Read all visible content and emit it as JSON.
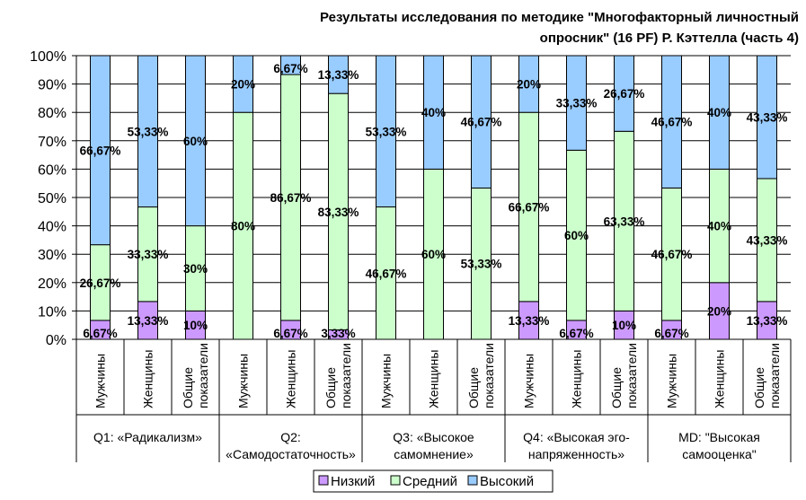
{
  "chart_data": {
    "type": "bar",
    "stacked": "percent",
    "title": "Результаты исследования по методике \"Многофакторный личностный опросник\" (16 PF) Р. Кэттелла (часть 4)",
    "title_lines": [
      "Результаты исследования по методике \"Многофакторный личностный",
      "опросник\" (16 PF) Р. Кэттелла (часть 4)"
    ],
    "ylim": [
      0,
      100
    ],
    "yticks": [
      "0%",
      "10%",
      "20%",
      "30%",
      "40%",
      "50%",
      "60%",
      "70%",
      "80%",
      "90%",
      "100%"
    ],
    "grid": true,
    "legend_position": "bottom",
    "groups": [
      {
        "label_lines": [
          "Q1: «Радикализм»"
        ]
      },
      {
        "label_lines": [
          "Q2:",
          "«Самодостаточность»"
        ]
      },
      {
        "label_lines": [
          "Q3: «Высокое",
          "самомнение»"
        ]
      },
      {
        "label_lines": [
          "Q4: «Высокая эго-",
          "напряженность»"
        ]
      },
      {
        "label_lines": [
          "MD: \"Высокая",
          "самооценка\""
        ]
      }
    ],
    "subcategories": [
      [
        "Мужчины"
      ],
      [
        "Женщины"
      ],
      [
        "Общие",
        "показатели"
      ]
    ],
    "series": [
      {
        "name": "Низкий",
        "color": "#CC99FF",
        "values": [
          6.67,
          13.33,
          10,
          0,
          6.67,
          3.33,
          0,
          0,
          0,
          13.33,
          6.67,
          10,
          6.67,
          20,
          13.33
        ],
        "labels": [
          "6,67%",
          "13,33%",
          "10%",
          "",
          "6,67%",
          "3,33%",
          "",
          "",
          "",
          "13,33%",
          "6,67%",
          "10%",
          "6,67%",
          "20%",
          "13,33%"
        ]
      },
      {
        "name": "Средний",
        "color": "#CCFFCC",
        "values": [
          26.67,
          33.33,
          30,
          80,
          86.67,
          83.33,
          46.67,
          60,
          53.33,
          66.67,
          60,
          63.33,
          46.67,
          40,
          43.33
        ],
        "labels": [
          "26,67%",
          "33,33%",
          "30%",
          "80%",
          "86,67%",
          "83,33%",
          "46,67%",
          "60%",
          "53,33%",
          "66,67%",
          "60%",
          "63,33%",
          "46,67%",
          "40%",
          "43,33%"
        ]
      },
      {
        "name": "Высокий",
        "color": "#99CCFF",
        "values": [
          66.67,
          53.33,
          60,
          20,
          6.67,
          13.33,
          53.33,
          40,
          46.67,
          20,
          33.33,
          26.67,
          46.67,
          40,
          43.33
        ],
        "labels": [
          "66,67%",
          "53,33%",
          "60%",
          "20%",
          "6,67%",
          "13,33%",
          "53,33%",
          "40%",
          "46,67%",
          "20%",
          "33,33%",
          "26,67%",
          "46,67%",
          "40%",
          "43,33%"
        ]
      }
    ]
  }
}
